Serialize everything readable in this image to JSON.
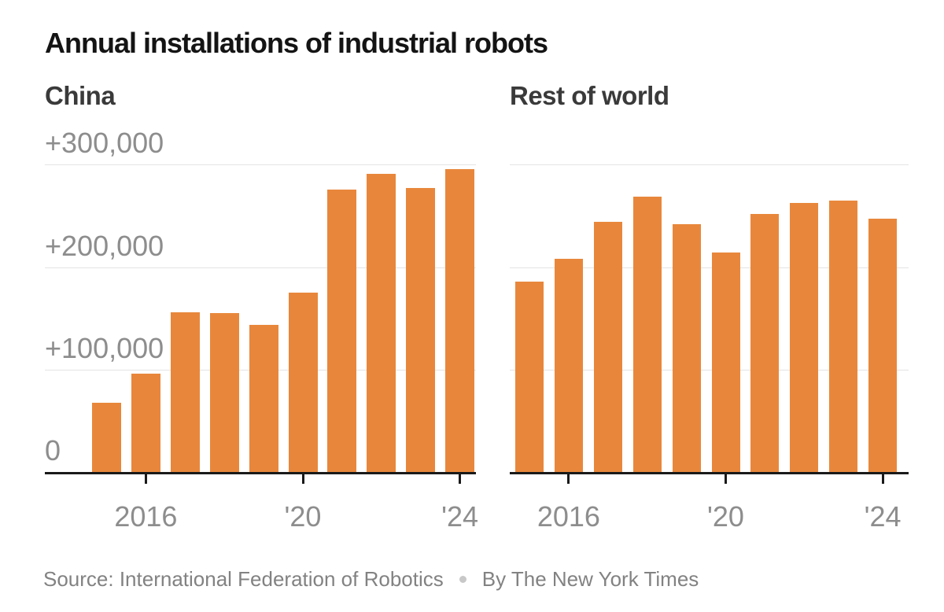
{
  "header": {
    "title": "Annual installations of industrial robots"
  },
  "colors": {
    "bar": "#e8873b",
    "gridline": "#e4e4e4",
    "axis": "#1a1a1a",
    "axis_label_gray": "#8d8d8d",
    "title_color": "#141414",
    "subtitle_color": "#3a3a3a",
    "source_gray": "#828282",
    "dot_separator": "#c8c8c8",
    "background": "#ffffff"
  },
  "footer": {
    "source": "Source: International Federation of Robotics",
    "byline": "By The New York Times",
    "separator_icon": "dot"
  },
  "chart_data": [
    {
      "type": "bar",
      "title": "China",
      "x": [
        2015,
        2016,
        2017,
        2018,
        2019,
        2020,
        2021,
        2022,
        2023,
        2024
      ],
      "values": [
        68000,
        96000,
        156000,
        155000,
        144000,
        175000,
        276000,
        291000,
        277000,
        296000
      ],
      "x_tick_labels": [
        "2016",
        "'20",
        "'24"
      ],
      "x_tick_indices": [
        1,
        5,
        9
      ],
      "y_tick_labels": [
        "+300,000",
        "+200,000",
        "+100,000",
        "0"
      ],
      "y_tick_values": [
        300000,
        200000,
        100000,
        0
      ],
      "show_y_labels": true,
      "grid": true,
      "ylim": [
        0,
        345000
      ],
      "legend": "none"
    },
    {
      "type": "bar",
      "title": "Rest of world",
      "x": [
        2015,
        2016,
        2017,
        2018,
        2019,
        2020,
        2021,
        2022,
        2023,
        2024
      ],
      "values": [
        186000,
        208000,
        244000,
        269000,
        242000,
        214000,
        252000,
        263000,
        265000,
        247000
      ],
      "x_tick_labels": [
        "2016",
        "'20",
        "'24"
      ],
      "x_tick_indices": [
        1,
        5,
        9
      ],
      "y_tick_labels": [],
      "y_tick_values": [
        300000,
        200000,
        100000,
        0
      ],
      "show_y_labels": false,
      "grid": true,
      "ylim": [
        0,
        345000
      ],
      "legend": "none"
    }
  ]
}
